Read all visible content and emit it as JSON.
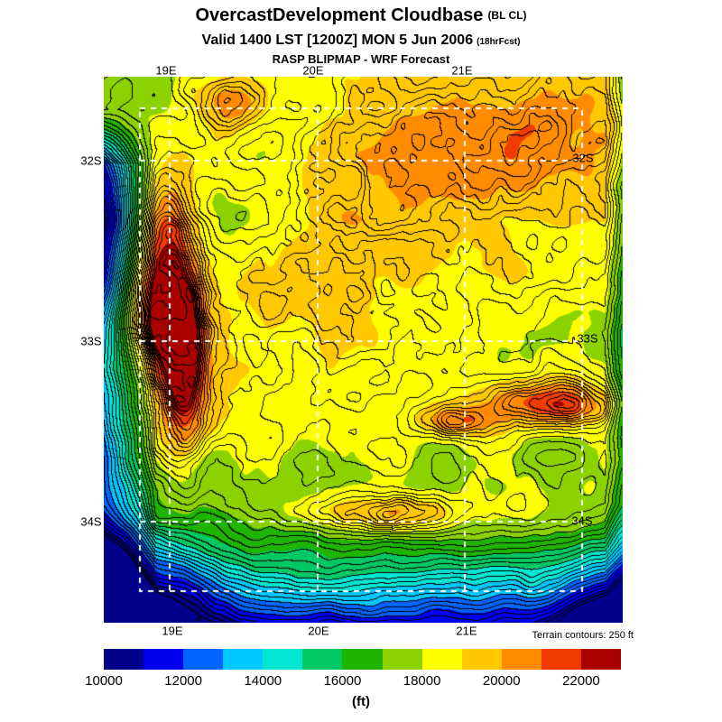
{
  "header": {
    "title": "OvercastDevelopment Cloudbase",
    "title_suffix": "(BL CL)",
    "valid": "Valid 1400 LST [1200Z] MON 5 Jun 2006",
    "valid_suffix": "(18hrFcst)",
    "model": "RASP BLIPMAP - WRF Forecast"
  },
  "map": {
    "lon_labels": [
      "19E",
      "20E",
      "21E"
    ],
    "lat_labels": [
      "32S",
      "33S",
      "34S"
    ],
    "terrain_note": "Terrain contours: 250 ft",
    "contour_interval_ft": 250
  },
  "colorbar": {
    "unit": "(ft)",
    "min": 10000,
    "max": 23000,
    "step": 1000,
    "tick_labels": [
      "10000",
      "12000",
      "14000",
      "16000",
      "18000",
      "20000",
      "22000"
    ],
    "colors": [
      "#00008b",
      "#0000f0",
      "#0064ff",
      "#00c8ff",
      "#00e6d2",
      "#00c864",
      "#1eb400",
      "#8cd200",
      "#ffff00",
      "#ffc800",
      "#ff8c00",
      "#f03c00",
      "#aa0000"
    ]
  }
}
